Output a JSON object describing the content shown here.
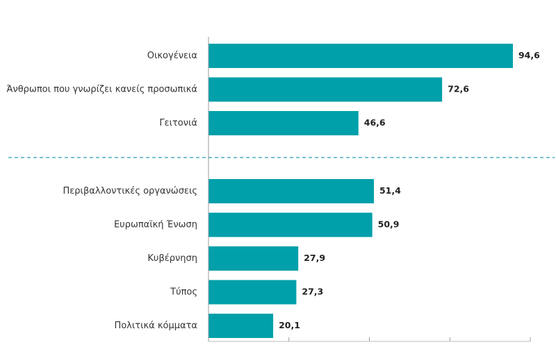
{
  "chart_data": {
    "type": "bar",
    "orientation": "horizontal",
    "xlim": [
      0,
      100
    ],
    "grid": false,
    "bar_color": "#00A0AA",
    "separator_color": "#2A9BB0",
    "groups": [
      {
        "categories": [
          "Οικογένεια",
          "Άνθρωποι που γνωρίζει κανείς προσωπικά",
          "Γειτονιά"
        ],
        "values": [
          94.6,
          72.6,
          46.6
        ],
        "value_labels": [
          "94,6",
          "72,6",
          "46,6"
        ]
      },
      {
        "categories": [
          "Περιβαλλοντικές οργανώσεις",
          "Ευρωπαϊκή Ένωση",
          "Κυβέρνηση",
          "Τύπος",
          "Πολιτικά κόμματα"
        ],
        "values": [
          51.4,
          50.9,
          27.9,
          27.3,
          20.1
        ],
        "value_labels": [
          "51,4",
          "50,9",
          "27,9",
          "27,3",
          "20,1"
        ]
      }
    ]
  }
}
